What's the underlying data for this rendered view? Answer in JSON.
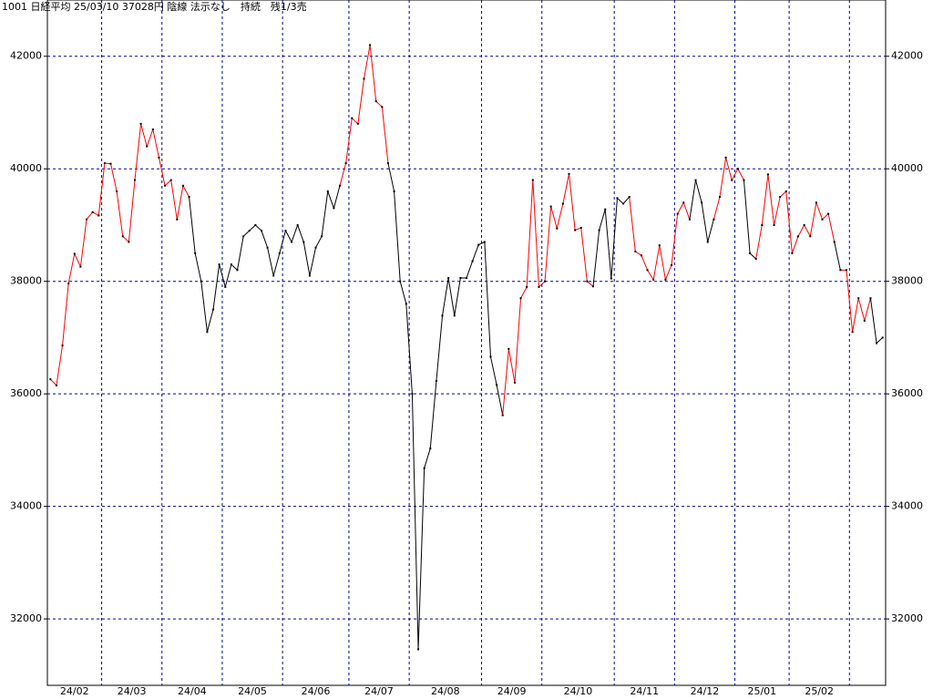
{
  "chart_data": {
    "type": "line",
    "title": "1001 日経平均 25/03/10 37028円 陰線 法示なし　持続　残1/3売",
    "categories": [
      "24/02",
      "24/02",
      "24/02",
      "24/02",
      "24/02",
      "24/02",
      "24/02",
      "24/02",
      "24/02",
      "24/03",
      "24/03",
      "24/03",
      "24/03",
      "24/03",
      "24/03",
      "24/03",
      "24/03",
      "24/03",
      "24/03",
      "24/04",
      "24/04",
      "24/04",
      "24/04",
      "24/04",
      "24/04",
      "24/04",
      "24/04",
      "24/04",
      "24/04",
      "24/05",
      "24/05",
      "24/05",
      "24/05",
      "24/05",
      "24/05",
      "24/05",
      "24/05",
      "24/05",
      "24/05",
      "24/06",
      "24/06",
      "24/06",
      "24/06",
      "24/06",
      "24/06",
      "24/06",
      "24/06",
      "24/06",
      "24/06",
      "24/06",
      "24/07",
      "24/07",
      "24/07",
      "24/07",
      "24/07",
      "24/07",
      "24/07",
      "24/07",
      "24/07",
      "24/07",
      "24/08",
      "24/08",
      "24/08",
      "24/08",
      "24/08",
      "24/08",
      "24/08",
      "24/08",
      "24/08",
      "24/08",
      "24/08",
      "24/08",
      "24/09",
      "24/09",
      "24/09",
      "24/09",
      "24/09",
      "24/09",
      "24/09",
      "24/09",
      "24/09",
      "24/09",
      "24/10",
      "24/10",
      "24/10",
      "24/10",
      "24/10",
      "24/10",
      "24/10",
      "24/10",
      "24/10",
      "24/10",
      "24/10",
      "24/10",
      "24/11",
      "24/11",
      "24/11",
      "24/11",
      "24/11",
      "24/11",
      "24/11",
      "24/11",
      "24/11",
      "24/11",
      "24/12",
      "24/12",
      "24/12",
      "24/12",
      "24/12",
      "24/12",
      "24/12",
      "24/12",
      "24/12",
      "24/12",
      "25/01",
      "25/01",
      "25/01",
      "25/01",
      "25/01",
      "25/01",
      "25/01",
      "25/01",
      "25/01",
      "25/02",
      "25/02",
      "25/02",
      "25/02",
      "25/02",
      "25/02",
      "25/02",
      "25/02",
      "25/02",
      "25/02",
      null,
      null,
      null,
      null,
      null,
      null
    ],
    "series": [
      {
        "dot_color": "#000000",
        "values": [
          36260,
          36150,
          36860,
          37960,
          38490,
          38260,
          39100,
          39230,
          39170,
          40100,
          40090,
          39600,
          38800,
          38700,
          39800,
          40800,
          40400,
          40700,
          40200,
          39700,
          39800,
          39100,
          39700,
          39500,
          38500,
          38000,
          37100,
          37500,
          38300,
          37900,
          38300,
          38200,
          38800,
          38900,
          39000,
          38900,
          38600,
          38100,
          38500,
          38900,
          38700,
          39000,
          38700,
          38100,
          38600,
          38800,
          39600,
          39300,
          39700,
          40100,
          40900,
          40800,
          41600,
          42200,
          41200,
          41100,
          40100,
          39600,
          38000,
          37600,
          36000,
          31460,
          34680,
          35030,
          36230,
          37390,
          38060,
          37390,
          38060,
          38060,
          38360,
          38650,
          38700,
          36660,
          36160,
          35620,
          36800,
          36200,
          37700,
          37900,
          39800,
          37900,
          38000,
          39330,
          38940,
          39380,
          39910,
          38910,
          38950,
          38000,
          37910,
          38910,
          39280,
          38050,
          39480,
          39380,
          39500,
          38530,
          38460,
          38200,
          38030,
          38640,
          38030,
          38290,
          39200,
          39400,
          39100,
          39800,
          39400,
          38700,
          39100,
          39500,
          40200,
          39800,
          40000,
          39800,
          38500,
          38400,
          39000,
          39900,
          39000,
          39500,
          39600,
          38500,
          38800,
          39000,
          38800,
          39400,
          39100,
          39200,
          38700,
          38200,
          38200,
          37100,
          37700,
          37300,
          37700,
          36900,
          37000
        ],
        "colors": [
          "red",
          "red",
          "red",
          "red",
          "red",
          "red",
          "red",
          "red",
          "red",
          "red",
          "red",
          "red",
          "red",
          "red",
          "red",
          "red",
          "red",
          "red",
          "red",
          "red",
          "red",
          "red",
          "red",
          "red",
          "black",
          "black",
          "black",
          "black",
          "black",
          "black",
          "black",
          "black",
          "black",
          "black",
          "black",
          "black",
          "black",
          "black",
          "black",
          "black",
          "black",
          "black",
          "black",
          "black",
          "black",
          "black",
          "black",
          "black",
          "black",
          "red",
          "red",
          "red",
          "red",
          "red",
          "red",
          "red",
          "red",
          "black",
          "black",
          "black",
          "black",
          "black",
          "black",
          "black",
          "black",
          "black",
          "black",
          "black",
          "black",
          "black",
          "black",
          "black",
          "black",
          "black",
          "black",
          "black",
          "red",
          "red",
          "red",
          "red",
          "red",
          "red",
          "red",
          "red",
          "red",
          "red",
          "red",
          "red",
          "red",
          "red",
          "red",
          "black",
          "black",
          "black",
          "black",
          "black",
          "black",
          "red",
          "red",
          "red",
          "red",
          "red",
          "red",
          "red",
          "red",
          "red",
          "red",
          "black",
          "black",
          "black",
          "black",
          "red",
          "red",
          "red",
          "red",
          "red",
          "black",
          "black",
          "red",
          "red",
          "red",
          "red",
          "red",
          "red",
          "red",
          "red",
          "red",
          "red",
          "red",
          "red",
          "red",
          "black",
          "red",
          "red",
          "red",
          "red",
          "red",
          "black",
          "black"
        ]
      }
    ],
    "ylim": [
      30820,
      43000
    ],
    "yticks": [
      32000,
      34000,
      36000,
      38000,
      40000,
      42000
    ],
    "grid": true,
    "grid_color": "#0000a0"
  }
}
